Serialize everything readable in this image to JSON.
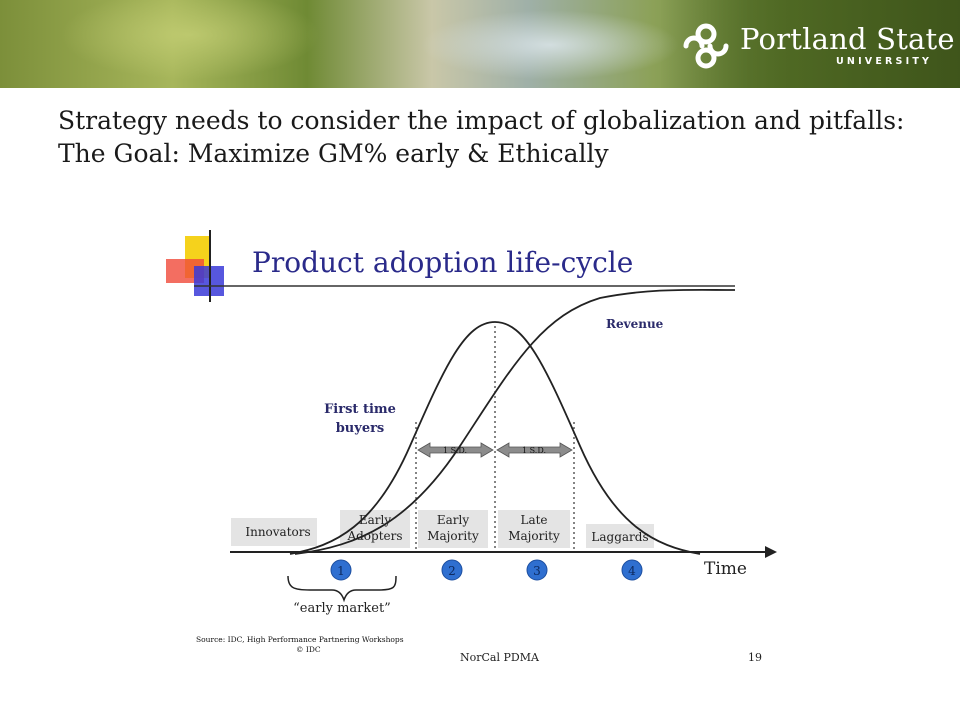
{
  "header": {
    "logo_name": "Portland State",
    "logo_sub": "UNIVERSITY"
  },
  "slide": {
    "title": "Strategy needs to consider the impact of globalization and pitfalls: The Goal: Maximize GM% early & Ethically"
  },
  "diagram": {
    "heading": "Product adoption life-cycle",
    "revenue_label": "Revenue",
    "buyers_label_line1": "First time",
    "buyers_label_line2": "buyers",
    "sd_label": "1 S.D.",
    "time_label": "Time",
    "segments": [
      {
        "line1": "Innovators",
        "line2": ""
      },
      {
        "line1": "Early",
        "line2": "Adopters"
      },
      {
        "line1": "Early",
        "line2": "Majority"
      },
      {
        "line1": "Late",
        "line2": "Majority"
      },
      {
        "line1": "Laggards",
        "line2": ""
      }
    ],
    "markers": [
      "1",
      "2",
      "3",
      "4"
    ],
    "early_market": "“early market”",
    "source_line1": "Source: IDC, High Performance Partnering Workshops",
    "source_line2": "© IDC",
    "footer_org": "NorCal PDMA",
    "page_number": "19",
    "colors": {
      "marker": "#2f6fd0",
      "segment_bg": "#e4e4e4",
      "heading": "#2a2a8a"
    }
  }
}
